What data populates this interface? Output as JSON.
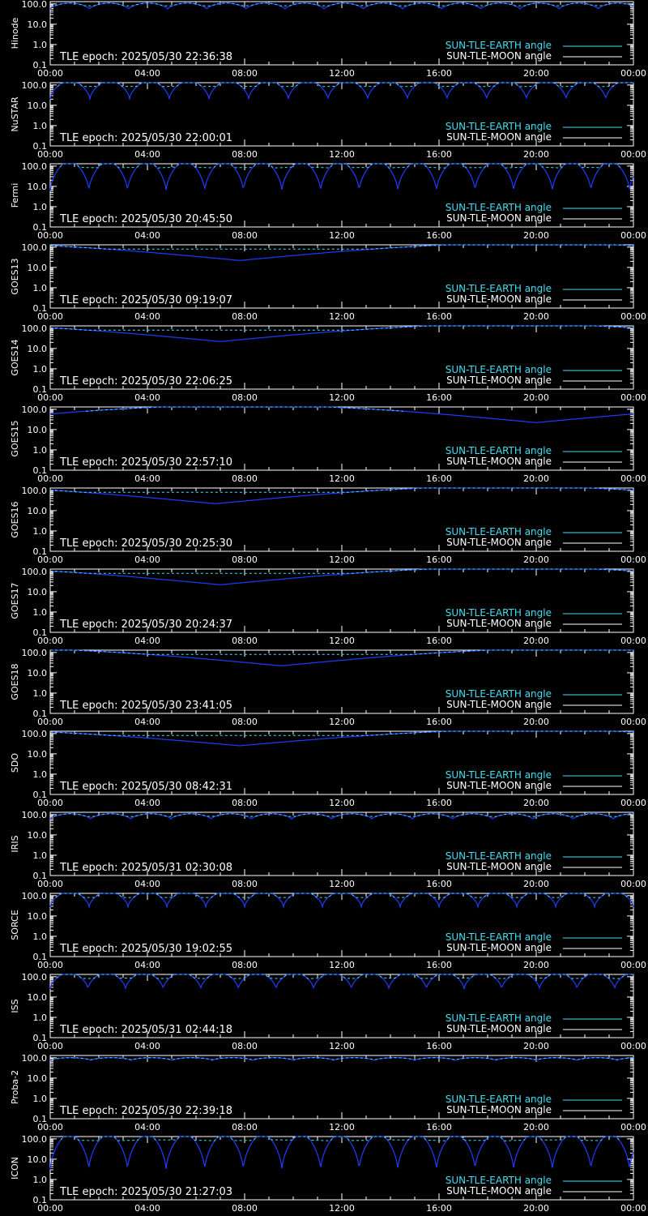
{
  "colors": {
    "background": "#000000",
    "axes": "#ffffff",
    "earth": "#44ddee",
    "moon": "#ffffff",
    "curve": "#1e3cff"
  },
  "legend": {
    "earth_label": "SUN-TLE-EARTH angle",
    "moon_label": "SUN-TLE-MOON angle"
  },
  "epoch_prefix": "TLE epoch: ",
  "chart_data": [
    {
      "type": "line",
      "ylabel": "Hinode",
      "epoch": "2025/05/30 22:36:38",
      "yscale": "log",
      "ylim": [
        0.1,
        130
      ],
      "y_ticks": [
        "100.0",
        "10.0",
        "1.0",
        "0.1"
      ],
      "x_ticks": [
        "00:00",
        "04:00",
        "08:00",
        "12:00",
        "16:00",
        "20:00",
        "00:00"
      ],
      "series": [
        {
          "name": "SUN-TLE-EARTH angle",
          "pattern": "orbital",
          "min": 55,
          "max": 110,
          "periods": 14.9
        }
      ]
    },
    {
      "type": "line",
      "ylabel": "NuSTAR",
      "epoch": "2025/05/30 22:00:01",
      "yscale": "log",
      "ylim": [
        0.1,
        130
      ],
      "y_ticks": [
        "100.0",
        "10.0",
        "1.0",
        "0.1"
      ],
      "x_ticks": [
        "00:00",
        "04:00",
        "08:00",
        "12:00",
        "16:00",
        "20:00",
        "00:00"
      ],
      "series": [
        {
          "name": "SUN-TLE-EARTH angle",
          "pattern": "orbital",
          "min": 20,
          "max": 160,
          "periods": 14.7
        }
      ]
    },
    {
      "type": "line",
      "ylabel": "Fermi",
      "epoch": "2025/05/30 20:45:50",
      "yscale": "log",
      "ylim": [
        0.1,
        130
      ],
      "y_ticks": [
        "100.0",
        "10.0",
        "1.0",
        "0.1"
      ],
      "x_ticks": [
        "00:00",
        "04:00",
        "08:00",
        "12:00",
        "16:00",
        "20:00",
        "00:00"
      ],
      "series": [
        {
          "name": "SUN-TLE-EARTH angle",
          "pattern": "orbital",
          "min": 6,
          "max": 165,
          "periods": 15.1
        }
      ]
    },
    {
      "type": "line",
      "ylabel": "GOES13",
      "epoch": "2025/05/30 09:19:07",
      "yscale": "log",
      "ylim": [
        0.1,
        130
      ],
      "y_ticks": [
        "100.0",
        "10.0",
        "1.0",
        "0.1"
      ],
      "x_ticks": [
        "00:00",
        "04:00",
        "08:00",
        "12:00",
        "16:00",
        "20:00",
        "00:00"
      ],
      "series": [
        {
          "name": "SUN-TLE-EARTH angle",
          "pattern": "geo",
          "min": 22,
          "max": 158,
          "min_hour": 7.8
        }
      ]
    },
    {
      "type": "line",
      "ylabel": "GOES14",
      "epoch": "2025/05/30 22:06:25",
      "yscale": "log",
      "ylim": [
        0.1,
        130
      ],
      "y_ticks": [
        "100.0",
        "10.0",
        "1.0",
        "0.1"
      ],
      "x_ticks": [
        "00:00",
        "04:00",
        "08:00",
        "12:00",
        "16:00",
        "20:00",
        "00:00"
      ],
      "series": [
        {
          "name": "SUN-TLE-EARTH angle",
          "pattern": "geo",
          "min": 22,
          "max": 158,
          "min_hour": 7.0
        }
      ]
    },
    {
      "type": "line",
      "ylabel": "GOES15",
      "epoch": "2025/05/30 22:57:10",
      "yscale": "log",
      "ylim": [
        0.1,
        130
      ],
      "y_ticks": [
        "100.0",
        "10.0",
        "1.0",
        "0.1"
      ],
      "x_ticks": [
        "00:00",
        "04:00",
        "08:00",
        "12:00",
        "16:00",
        "20:00",
        "00:00"
      ],
      "series": [
        {
          "name": "SUN-TLE-EARTH angle",
          "pattern": "geo",
          "min": 22,
          "max": 158,
          "min_hour": 20.0
        }
      ]
    },
    {
      "type": "line",
      "ylabel": "GOES16",
      "epoch": "2025/05/30 20:25:30",
      "yscale": "log",
      "ylim": [
        0.1,
        130
      ],
      "y_ticks": [
        "100.0",
        "10.0",
        "1.0",
        "0.1"
      ],
      "x_ticks": [
        "00:00",
        "04:00",
        "08:00",
        "12:00",
        "16:00",
        "20:00",
        "00:00"
      ],
      "series": [
        {
          "name": "SUN-TLE-EARTH angle",
          "pattern": "geo",
          "min": 22,
          "max": 158,
          "min_hour": 6.8
        }
      ]
    },
    {
      "type": "line",
      "ylabel": "GOES17",
      "epoch": "2025/05/30 20:24:37",
      "yscale": "log",
      "ylim": [
        0.1,
        130
      ],
      "y_ticks": [
        "100.0",
        "10.0",
        "1.0",
        "0.1"
      ],
      "x_ticks": [
        "00:00",
        "04:00",
        "08:00",
        "12:00",
        "16:00",
        "20:00",
        "00:00"
      ],
      "series": [
        {
          "name": "SUN-TLE-EARTH angle",
          "pattern": "geo",
          "min": 22,
          "max": 158,
          "min_hour": 7.0
        }
      ]
    },
    {
      "type": "line",
      "ylabel": "GOES18",
      "epoch": "2025/05/30 23:41:05",
      "yscale": "log",
      "ylim": [
        0.1,
        130
      ],
      "y_ticks": [
        "100.0",
        "10.0",
        "1.0",
        "0.1"
      ],
      "x_ticks": [
        "00:00",
        "04:00",
        "08:00",
        "12:00",
        "16:00",
        "20:00",
        "00:00"
      ],
      "series": [
        {
          "name": "SUN-TLE-EARTH angle",
          "pattern": "geo",
          "min": 22,
          "max": 158,
          "min_hour": 9.5
        }
      ]
    },
    {
      "type": "line",
      "ylabel": "SDO",
      "epoch": "2025/05/30 08:42:31",
      "yscale": "log",
      "ylim": [
        0.1,
        130
      ],
      "y_ticks": [
        "100.0",
        "10.0",
        "1.0",
        "0.1"
      ],
      "x_ticks": [
        "00:00",
        "04:00",
        "08:00",
        "12:00",
        "16:00",
        "20:00",
        "00:00"
      ],
      "series": [
        {
          "name": "SUN-TLE-EARTH angle",
          "pattern": "geo",
          "min": 25,
          "max": 155,
          "min_hour": 7.8
        }
      ]
    },
    {
      "type": "line",
      "ylabel": "IRIS",
      "epoch": "2025/05/31 02:30:08",
      "yscale": "log",
      "ylim": [
        0.1,
        130
      ],
      "y_ticks": [
        "100.0",
        "10.0",
        "1.0",
        "0.1"
      ],
      "x_ticks": [
        "00:00",
        "04:00",
        "08:00",
        "12:00",
        "16:00",
        "20:00",
        "00:00"
      ],
      "series": [
        {
          "name": "SUN-TLE-EARTH angle",
          "pattern": "orbital",
          "min": 60,
          "max": 110,
          "periods": 14.5
        }
      ]
    },
    {
      "type": "line",
      "ylabel": "SORCE",
      "epoch": "2025/05/30 19:02:55",
      "yscale": "log",
      "ylim": [
        0.1,
        130
      ],
      "y_ticks": [
        "100.0",
        "10.0",
        "1.0",
        "0.1"
      ],
      "x_ticks": [
        "00:00",
        "04:00",
        "08:00",
        "12:00",
        "16:00",
        "20:00",
        "00:00"
      ],
      "series": [
        {
          "name": "SUN-TLE-EARTH angle",
          "pattern": "orbital",
          "min": 28,
          "max": 160,
          "periods": 15.0
        }
      ]
    },
    {
      "type": "line",
      "ylabel": "ISS",
      "epoch": "2025/05/31 02:44:18",
      "yscale": "log",
      "ylim": [
        0.1,
        130
      ],
      "y_ticks": [
        "100.0",
        "10.0",
        "1.0",
        "0.1"
      ],
      "x_ticks": [
        "00:00",
        "04:00",
        "08:00",
        "12:00",
        "16:00",
        "20:00",
        "00:00"
      ],
      "series": [
        {
          "name": "SUN-TLE-EARTH angle",
          "pattern": "orbital",
          "min": 25,
          "max": 158,
          "periods": 15.5
        }
      ]
    },
    {
      "type": "line",
      "ylabel": "Proba-2",
      "epoch": "2025/05/30 22:39:18",
      "yscale": "log",
      "ylim": [
        0.1,
        130
      ],
      "y_ticks": [
        "100.0",
        "10.0",
        "1.0",
        "0.1"
      ],
      "x_ticks": [
        "00:00",
        "04:00",
        "08:00",
        "12:00",
        "16:00",
        "20:00",
        "00:00"
      ],
      "series": [
        {
          "name": "SUN-TLE-EARTH angle",
          "pattern": "orbital",
          "min": 75,
          "max": 102,
          "periods": 14.4
        }
      ]
    },
    {
      "type": "line",
      "ylabel": "ICON",
      "epoch": "2025/05/30 21:27:03",
      "yscale": "log",
      "ylim": [
        0.1,
        130
      ],
      "y_ticks": [
        "100.0",
        "10.0",
        "1.0",
        "0.1"
      ],
      "x_ticks": [
        "00:00",
        "04:00",
        "08:00",
        "12:00",
        "16:00",
        "20:00",
        "00:00"
      ],
      "series": [
        {
          "name": "SUN-TLE-EARTH angle",
          "pattern": "orbital",
          "min": 3,
          "max": 165,
          "periods": 15.1
        }
      ]
    }
  ]
}
